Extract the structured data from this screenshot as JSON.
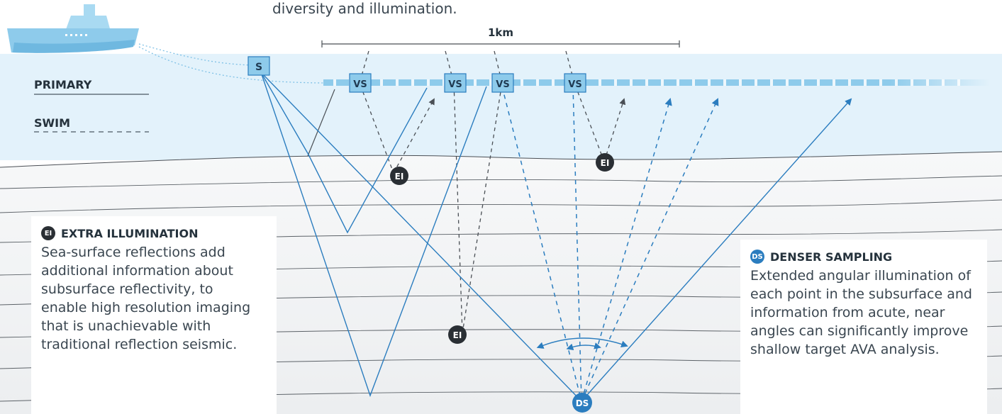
{
  "caption": "diversity and illumination.",
  "scale_label": "1km",
  "levels": {
    "primary": "PRIMARY",
    "swim": "SWIM"
  },
  "markers": {
    "source": "S",
    "virtual_source": "VS",
    "extra_illumination": "EI",
    "denser_sampling": "DS"
  },
  "extra_illumination": {
    "title": "EXTRA ILLUMINATION",
    "body": "Sea-surface reflections add additional information about subsurface reflectivity, to enable high resolution imaging that is unachievable with traditional reflection seismic."
  },
  "denser_sampling": {
    "title": "DENSER SAMPLING",
    "body": "Extended angular illumination of each point in the subsurface and information from acute, near angles can significantly improve shallow target AVA analysis."
  },
  "colors": {
    "sea": "#e3f2fb",
    "sub_bg": "#f1f3f4",
    "ray_blue": "#2b7dbf",
    "ray_dark": "#4a4f55",
    "node_blue": "#8ecbeb",
    "badge_dark": "#2a2f34",
    "badge_blue": "#2b7dbf"
  },
  "icons": [
    "ship-icon",
    "extra-illumination-badge-icon",
    "denser-sampling-badge-icon"
  ]
}
